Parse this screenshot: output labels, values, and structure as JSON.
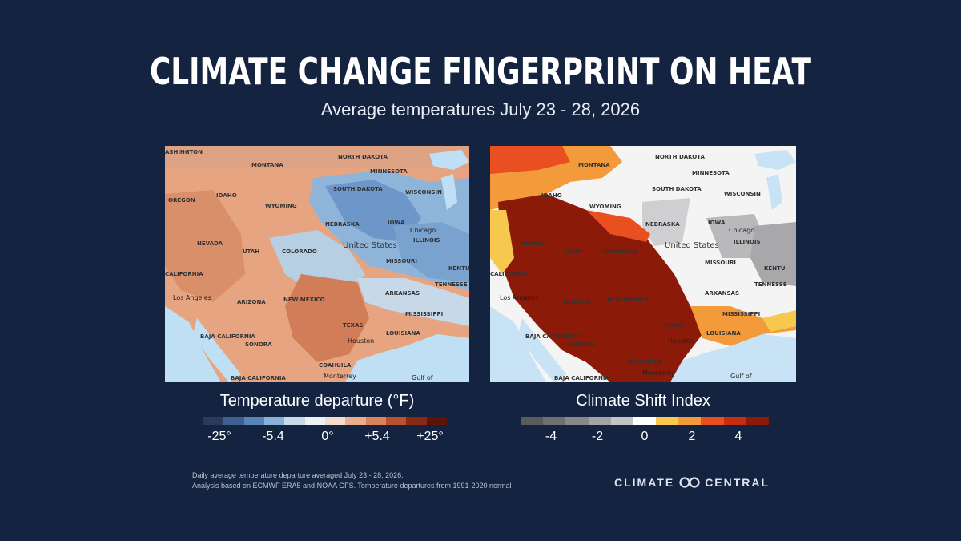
{
  "title": "Climate Change Fingerprint on Heat",
  "subtitle": "Average temperatures July 23 - 28, 2026",
  "maps": {
    "left": {
      "legend_title": "Temperature departure (°F)",
      "legend_labels": [
        "-25°",
        "-5.4",
        "0°",
        "+5.4",
        "+25°"
      ],
      "legend_colors": [
        "#2b3a5c",
        "#3f5f8f",
        "#5784b8",
        "#89b1d8",
        "#c6d9ea",
        "#eef1f4",
        "#f3dccb",
        "#e9ae8f",
        "#d9825d",
        "#b9502f",
        "#8a2a14",
        "#5e1208"
      ]
    },
    "right": {
      "legend_title": "Climate Shift Index",
      "legend_labels": [
        "-4",
        "-2",
        "0",
        "2",
        "4"
      ],
      "legend_colors": [
        "#5b5b5e",
        "#6f6f73",
        "#88888c",
        "#a3a3a7",
        "#c4c4c7",
        "#ffffff",
        "#f6c94e",
        "#f39a3b",
        "#ea4f22",
        "#c62e12",
        "#8c1a08"
      ]
    },
    "place_labels": {
      "washington": "ASHINGTON",
      "montana": "MONTANA",
      "north_dakota": "NORTH DAKOTA",
      "minnesota": "MINNESOTA",
      "south_dakota": "SOUTH DAKOTA",
      "wisconsin": "WISCONSIN",
      "oregon": "OREGON",
      "idaho": "IDAHO",
      "wyoming": "WYOMING",
      "nebraska": "NEBRASKA",
      "iowa": "IOWA",
      "chicago": "Chicago",
      "illinois": "ILLINOIS",
      "nevada": "NEVADA",
      "utah": "UTAH",
      "colorado": "COLORADO",
      "united_states": "United States",
      "missouri": "MISSOURI",
      "kentucky": "KENTU",
      "california": "CALIFORNIA",
      "tennessee": "TENNESSE",
      "los_angeles": "Los Angeles",
      "arizona": "ARIZONA",
      "new_mexico": "NEW MEXICO",
      "arkansas": "ARKANSAS",
      "mississippi": "MISSISSIPPI",
      "baja_california": "BAJA CALIFORNIA",
      "texas": "TEXAS",
      "louisiana": "LOUISIANA",
      "sonora": "SONORA",
      "houston": "Houston",
      "baja_california_2": "BAJA CALIFORNIA",
      "coahuila": "COAHUILA",
      "monterrey": "Monterrey",
      "gulf_of": "Gulf of"
    }
  },
  "footnote": {
    "line1": "Daily average temperature departure averaged July 23 - 28, 2026.",
    "line2": "Analysis based on ECMWF ERA5 and NOAA GFS. Temperature departures from 1991-2020 normal"
  },
  "brand": {
    "left": "CLIMATE",
    "right": "CENTRAL"
  }
}
